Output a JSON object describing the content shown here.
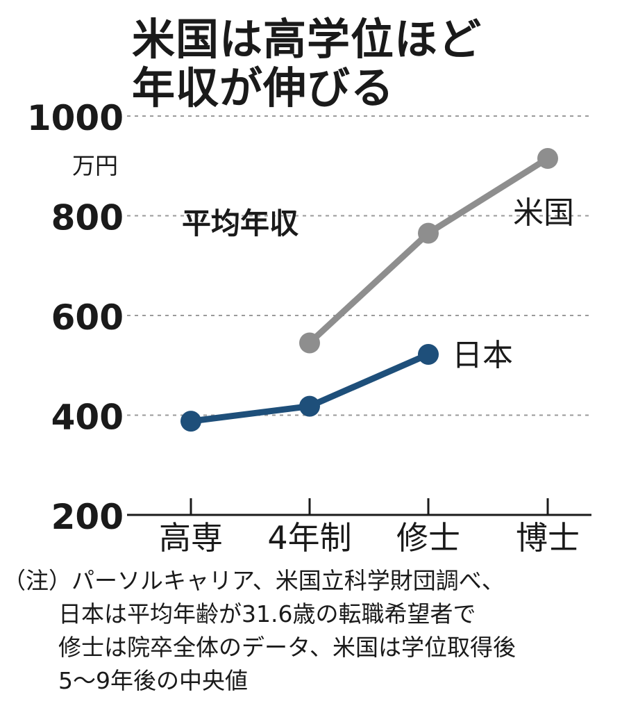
{
  "title_lines": [
    "米国は高学位ほど",
    "年収が伸びる"
  ],
  "note_lines": [
    "（注）パーソルキャリア、米国立科学財団調べ、",
    "日本は平均年齢が31.6歳の転職希望者で",
    "修士は院卒全体のデータ、米国は学位取得後",
    "5〜9年後の中央値"
  ],
  "chart_data": {
    "type": "line",
    "title": "米国は高学位ほど年収が伸びる",
    "annotation": "平均年収",
    "ylabel": "",
    "yunit": "万円",
    "ylim": [
      200,
      1000
    ],
    "yticks": [
      200,
      400,
      600,
      800,
      1000
    ],
    "ytick_labels": [
      "200",
      "400",
      "600",
      "800",
      "1000"
    ],
    "grid": true,
    "categories": [
      "高専",
      "4年制",
      "修士",
      "博士"
    ],
    "series": [
      {
        "name": "米国",
        "color": "#8e8e8e",
        "values": [
          null,
          545,
          765,
          915
        ]
      },
      {
        "name": "日本",
        "color": "#1e4f7a",
        "values": [
          388,
          418,
          522,
          null
        ]
      }
    ]
  }
}
